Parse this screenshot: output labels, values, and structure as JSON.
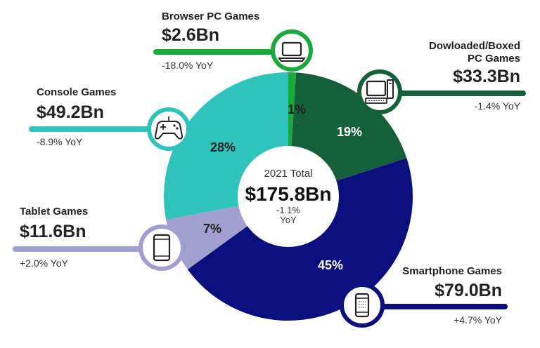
{
  "chart_data": {
    "type": "donut",
    "center": {
      "label": "2021 Total",
      "value": "$175.8Bn",
      "change": "-1.1%",
      "change_unit": "YoY"
    },
    "segments": [
      {
        "name": "Browser PC Games",
        "percent": 1,
        "percent_label": "1%",
        "value": 2.6,
        "value_label": "$2.6Bn",
        "yoy": "-18.0% YoY",
        "color": "#1aaa3a",
        "icon": "laptop-icon"
      },
      {
        "name": "Dowloaded/Boxed PC Games",
        "name_lines": [
          "Dowloaded/Boxed",
          "PC Games"
        ],
        "percent": 19,
        "percent_label": "19%",
        "value": 33.3,
        "value_label": "$33.3Bn",
        "yoy": "-1.4% YoY",
        "color": "#13603a",
        "icon": "desktop-pc-icon"
      },
      {
        "name": "Smartphone Games",
        "percent": 45,
        "percent_label": "45%",
        "value": 79.0,
        "value_label": "$79.0Bn",
        "yoy": "+4.7% YoY",
        "color": "#0b0f7d",
        "icon": "smartphone-icon"
      },
      {
        "name": "Tablet Games",
        "percent": 7,
        "percent_label": "7%",
        "value": 11.6,
        "value_label": "$11.6Bn",
        "yoy": "+2.0% YoY",
        "color": "#a09fd0",
        "icon": "tablet-icon"
      },
      {
        "name": "Console Games",
        "percent": 28,
        "percent_label": "28%",
        "value": 49.2,
        "value_label": "$49.2Bn",
        "yoy": "-8.9% YoY",
        "color": "#2ec4bc",
        "icon": "gamepad-icon"
      }
    ]
  }
}
